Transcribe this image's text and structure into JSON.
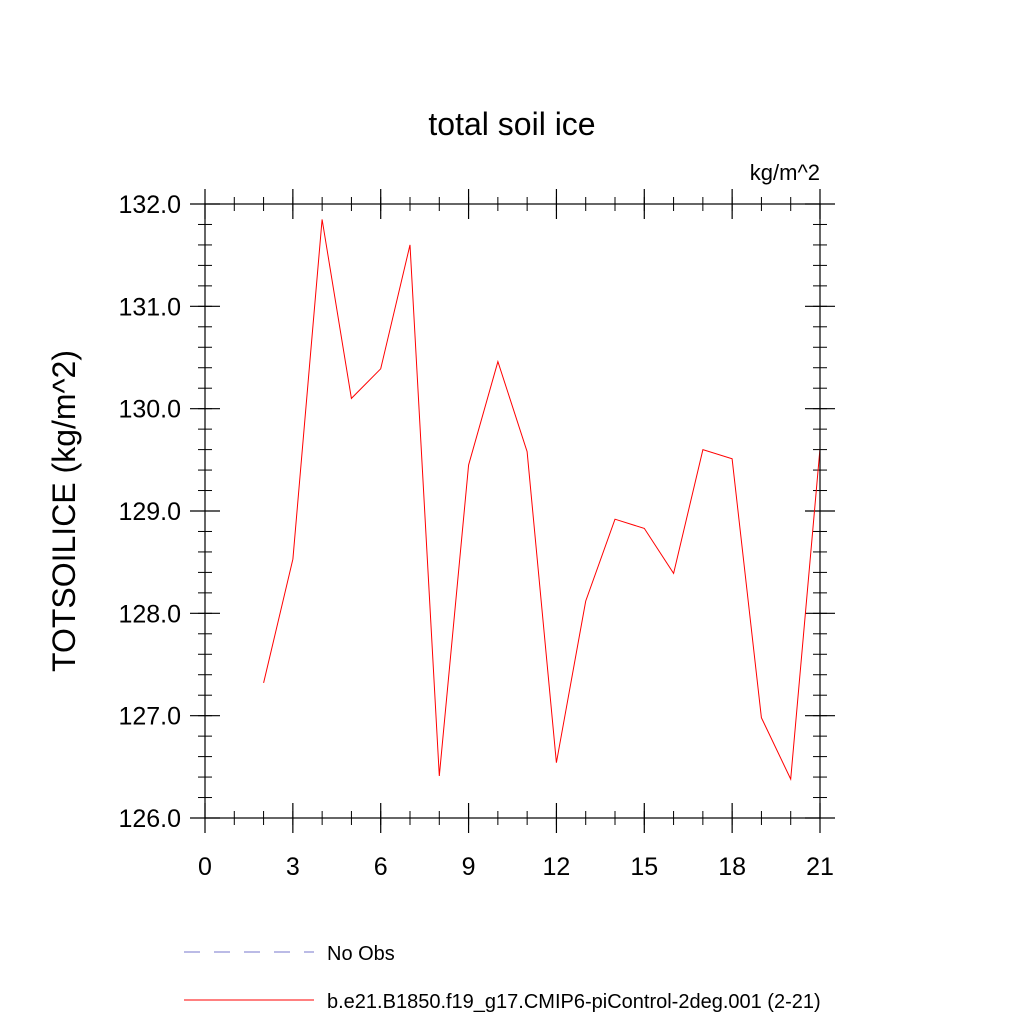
{
  "chart_data": {
    "type": "line",
    "title": "total soil ice",
    "units": "kg/m^2",
    "ylabel": "TOTSOILICE  (kg/m^2)",
    "xlabel": "",
    "xlim": [
      0,
      21
    ],
    "ylim": [
      126.0,
      132.0
    ],
    "x_ticks": [
      0,
      3,
      6,
      9,
      12,
      15,
      18,
      21
    ],
    "x_tick_labels": [
      "0",
      "3",
      "6",
      "9",
      "12",
      "15",
      "18",
      "21"
    ],
    "y_ticks": [
      126.0,
      127.0,
      128.0,
      129.0,
      130.0,
      131.0,
      132.0
    ],
    "y_tick_labels": [
      "126.0",
      "127.0",
      "128.0",
      "129.0",
      "130.0",
      "131.0",
      "132.0"
    ],
    "x_minor_step": 1,
    "y_minor_step": 0.2,
    "grid": false,
    "legend_position": "bottom",
    "series": [
      {
        "name": "b.e21.B1850.f19_g17.CMIP6-piControl-2deg.001 (2-21)",
        "color": "#ff0000",
        "dash": "solid",
        "x": [
          2,
          3,
          4,
          5,
          6,
          7,
          8,
          9,
          10,
          11,
          12,
          13,
          14,
          15,
          16,
          17,
          18,
          19,
          20,
          21
        ],
        "y": [
          127.32,
          128.53,
          131.85,
          130.1,
          130.39,
          131.6,
          126.41,
          129.45,
          130.46,
          129.58,
          126.54,
          128.12,
          128.92,
          128.83,
          128.39,
          129.6,
          129.51,
          126.98,
          126.38,
          129.61
        ]
      }
    ],
    "legend": [
      {
        "label": "No Obs",
        "color": "#7777cc",
        "dash": "dashed"
      },
      {
        "label": "b.e21.B1850.f19_g17.CMIP6-piControl-2deg.001 (2-21)",
        "color": "#ff0000",
        "dash": "solid"
      }
    ]
  }
}
